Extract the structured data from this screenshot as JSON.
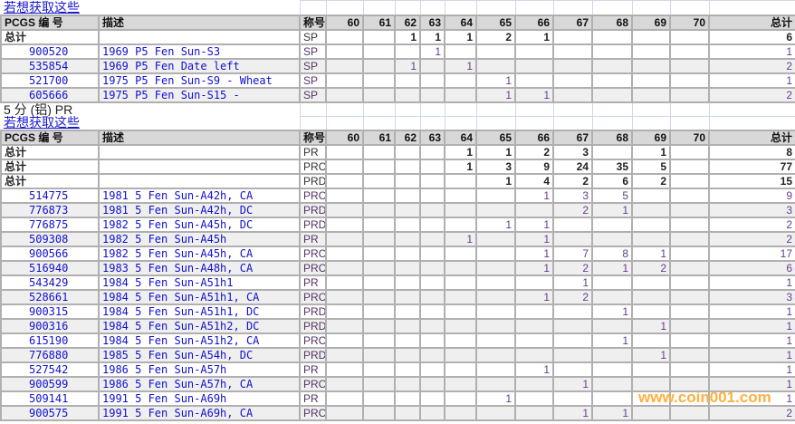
{
  "grades": [
    "60",
    "61",
    "62",
    "63",
    "64",
    "65",
    "66",
    "67",
    "68",
    "69",
    "70"
  ],
  "headers": {
    "pcgs": "PCGS 编 号",
    "desc": "描述",
    "grade": "称号",
    "total": "总计"
  },
  "link_label": "若想获取这些",
  "total_label": "总计",
  "watermark": "www.coin001.com",
  "sections": [
    {
      "title": "",
      "totals": [
        {
          "g": "SP",
          "v": [
            "",
            "",
            "1",
            "1",
            "1",
            "2",
            "1",
            "",
            "",
            "",
            "",
            "6"
          ]
        }
      ],
      "rows": [
        {
          "id": "900520",
          "desc": "1969 P5 Fen Sun-S3",
          "g": "SP",
          "v": [
            "",
            "",
            "",
            "1",
            "",
            "",
            "",
            "",
            "",
            "",
            "",
            "1"
          ]
        },
        {
          "id": "535854",
          "desc": "1969 P5 Fen Date left",
          "g": "SP",
          "v": [
            "",
            "",
            "1",
            "",
            "1",
            "",
            "",
            "",
            "",
            "",
            "",
            "2"
          ]
        },
        {
          "id": "521700",
          "desc": "1975 P5 Fen Sun-S9 - Wheat",
          "g": "SP",
          "v": [
            "",
            "",
            "",
            "",
            "",
            "1",
            "",
            "",
            "",
            "",
            "",
            "1"
          ]
        },
        {
          "id": "605666",
          "desc": "1975 P5 Fen Sun-S15 -",
          "g": "SP",
          "v": [
            "",
            "",
            "",
            "",
            "",
            "1",
            "1",
            "",
            "",
            "",
            "",
            "2"
          ]
        }
      ]
    },
    {
      "title": "5 分 (铝) PR",
      "totals": [
        {
          "g": "PR",
          "v": [
            "",
            "",
            "",
            "",
            "1",
            "1",
            "2",
            "3",
            "",
            "1",
            "",
            "8"
          ]
        },
        {
          "g": "PRC",
          "v": [
            "",
            "",
            "",
            "",
            "1",
            "3",
            "9",
            "24",
            "35",
            "5",
            "",
            "77"
          ]
        },
        {
          "g": "PRD",
          "v": [
            "",
            "",
            "",
            "",
            "",
            "1",
            "4",
            "2",
            "6",
            "2",
            "",
            "15"
          ]
        }
      ],
      "rows": [
        {
          "id": "514775",
          "desc": "1981 5 Fen Sun-A42h, CA",
          "g": "PRC",
          "v": [
            "",
            "",
            "",
            "",
            "",
            "",
            "1",
            "3",
            "5",
            "",
            "",
            "9"
          ]
        },
        {
          "id": "776873",
          "desc": "1981 5 Fen Sun-A42h, DC",
          "g": "PRD",
          "v": [
            "",
            "",
            "",
            "",
            "",
            "",
            "",
            "2",
            "1",
            "",
            "",
            "3"
          ]
        },
        {
          "id": "776875",
          "desc": "1982 5 Fen Sun-A45h, DC",
          "g": "PRD",
          "v": [
            "",
            "",
            "",
            "",
            "",
            "1",
            "1",
            "",
            "",
            "",
            "",
            "2"
          ]
        },
        {
          "id": "509308",
          "desc": "1982 5 Fen Sun-A45h",
          "g": "PR",
          "v": [
            "",
            "",
            "",
            "",
            "1",
            "",
            "1",
            "",
            "",
            "",
            "",
            "2"
          ]
        },
        {
          "id": "900566",
          "desc": "1982 5 Fen Sun-A45h, CA",
          "g": "PRC",
          "v": [
            "",
            "",
            "",
            "",
            "",
            "",
            "1",
            "7",
            "8",
            "1",
            "",
            "17"
          ]
        },
        {
          "id": "516940",
          "desc": "1983 5 Fen Sun-A48h, CA",
          "g": "PRC",
          "v": [
            "",
            "",
            "",
            "",
            "",
            "",
            "1",
            "2",
            "1",
            "2",
            "",
            "6"
          ]
        },
        {
          "id": "543429",
          "desc": "1984 5 Fen Sun-A51h1",
          "g": "PR",
          "v": [
            "",
            "",
            "",
            "",
            "",
            "",
            "",
            "1",
            "",
            "",
            "",
            "1"
          ]
        },
        {
          "id": "528661",
          "desc": "1984 5 Fen Sun-A51h1, CA",
          "g": "PRC",
          "v": [
            "",
            "",
            "",
            "",
            "",
            "",
            "1",
            "2",
            "",
            "",
            "",
            "3"
          ]
        },
        {
          "id": "900315",
          "desc": "1984 5 Fen Sun-A51h1, DC",
          "g": "PRD",
          "v": [
            "",
            "",
            "",
            "",
            "",
            "",
            "",
            "",
            "1",
            "",
            "",
            "1"
          ]
        },
        {
          "id": "900316",
          "desc": "1984 5 Fen Sun-A51h2, DC",
          "g": "PRD",
          "v": [
            "",
            "",
            "",
            "",
            "",
            "",
            "",
            "",
            "",
            "1",
            "",
            "1"
          ]
        },
        {
          "id": "615190",
          "desc": "1984 5 Fen Sun-A51h2, CA",
          "g": "PRC",
          "v": [
            "",
            "",
            "",
            "",
            "",
            "",
            "",
            "",
            "1",
            "",
            "",
            "1"
          ]
        },
        {
          "id": "776880",
          "desc": "1985 5 Fen Sun-A54h, DC",
          "g": "PRD",
          "v": [
            "",
            "",
            "",
            "",
            "",
            "",
            "",
            "",
            "",
            "1",
            "",
            "1"
          ]
        },
        {
          "id": "527542",
          "desc": "1986 5 Fen Sun-A57h",
          "g": "PR",
          "v": [
            "",
            "",
            "",
            "",
            "",
            "",
            "1",
            "",
            "",
            "",
            "",
            "1"
          ]
        },
        {
          "id": "900599",
          "desc": "1986 5 Fen Sun-A57h, CA",
          "g": "PRC",
          "v": [
            "",
            "",
            "",
            "",
            "",
            "",
            "",
            "1",
            "",
            "",
            "",
            "1"
          ]
        },
        {
          "id": "509141",
          "desc": "1991 5 Fen Sun-A69h",
          "g": "PR",
          "v": [
            "",
            "",
            "",
            "",
            "",
            "1",
            "",
            "",
            "",
            "",
            "",
            "1"
          ]
        },
        {
          "id": "900575",
          "desc": "1991 5 Fen Sun-A69h, CA",
          "g": "PRC",
          "v": [
            "",
            "",
            "",
            "",
            "",
            "",
            "",
            "1",
            "1",
            "",
            "",
            "2"
          ]
        }
      ]
    }
  ]
}
